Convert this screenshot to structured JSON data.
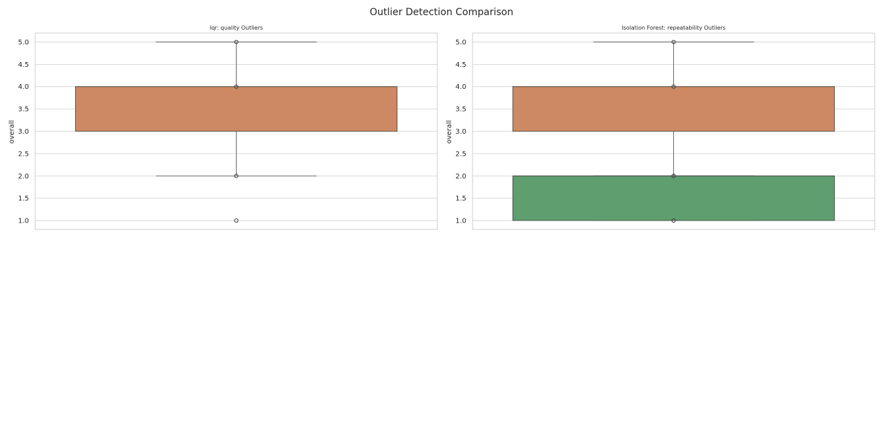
{
  "figure": {
    "title": "Outlier Detection Comparison"
  },
  "chart_data": [
    {
      "type": "box",
      "title": "Iqr: quality Outliers",
      "xlabel": "",
      "ylabel": "overall",
      "ylim": [
        0.8,
        5.2
      ],
      "yticks": [
        "1.0",
        "1.5",
        "2.0",
        "2.5",
        "3.0",
        "3.5",
        "4.0",
        "4.5",
        "5.0"
      ],
      "grid": true,
      "boxes": [
        {
          "q1": 3.0,
          "median": 4.0,
          "q3": 4.0,
          "whisker_low": 2.0,
          "whisker_high": 5.0,
          "color": "#cc8963",
          "outliers": [
            1.0,
            2.0,
            4.0,
            5.0
          ]
        }
      ]
    },
    {
      "type": "box",
      "title": "Isolation Forest: repeatability Outliers",
      "xlabel": "",
      "ylabel": "overall",
      "ylim": [
        0.8,
        5.2
      ],
      "yticks": [
        "1.0",
        "1.5",
        "2.0",
        "2.5",
        "3.0",
        "3.5",
        "4.0",
        "4.5",
        "5.0"
      ],
      "grid": true,
      "boxes": [
        {
          "q1": 3.0,
          "median": 4.0,
          "q3": 4.0,
          "whisker_low": 2.0,
          "whisker_high": 5.0,
          "color": "#cc8963",
          "outliers": [
            2.0,
            4.0,
            5.0
          ]
        },
        {
          "q1": 1.0,
          "median": 2.0,
          "q3": 2.0,
          "whisker_low": 1.0,
          "whisker_high": 2.0,
          "color": "#5f9e6e",
          "outliers": [
            1.0,
            2.0
          ]
        }
      ]
    }
  ]
}
